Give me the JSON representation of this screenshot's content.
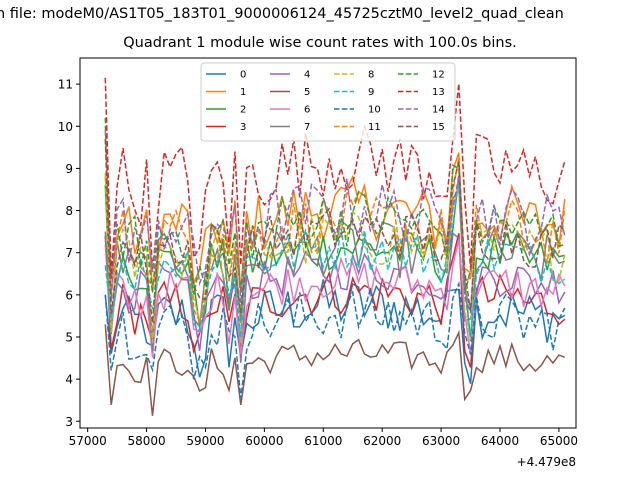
{
  "chart_data": {
    "type": "line",
    "suptitle": "n file: modeM0/AS1T05_183T01_9000006124_45725cztM0_level2_quad_clean",
    "title": "Quadrant 1 module wise count rates with 100.0s bins.",
    "xlabel": "",
    "ylabel": "",
    "x_offset_label": "+4.479e8",
    "xlim": [
      56870,
      65290
    ],
    "ylim": [
      2.84,
      11.62
    ],
    "xticks": [
      57000,
      58000,
      59000,
      60000,
      61000,
      62000,
      63000,
      64000,
      65000
    ],
    "yticks": [
      3,
      4,
      5,
      6,
      7,
      8,
      9,
      10,
      11
    ],
    "grid": false,
    "legend_position": "top-center",
    "x_start": 57300,
    "x_step": 100,
    "n_points": 79,
    "series": [
      {
        "name": "0",
        "color": "#1f77b4",
        "dash": "solid",
        "level": 5.5,
        "amp": 0.15,
        "first": 6.0
      },
      {
        "name": "1",
        "color": "#ff7f0e",
        "dash": "solid",
        "level": 7.7,
        "amp": 0.12,
        "first": 8.8
      },
      {
        "name": "2",
        "color": "#2ca02c",
        "dash": "solid",
        "level": 6.8,
        "amp": 0.1,
        "first": 8.6
      },
      {
        "name": "3",
        "color": "#d62728",
        "dash": "solid",
        "level": 5.8,
        "amp": 0.12,
        "first": 7.4
      },
      {
        "name": "4",
        "color": "#9467bd",
        "dash": "solid",
        "level": 6.3,
        "amp": 0.1,
        "first": 7.4
      },
      {
        "name": "5",
        "color": "#8c564b",
        "dash": "solid",
        "level": 4.4,
        "amp": 0.1,
        "first": 5.3
      },
      {
        "name": "6",
        "color": "#e377c2",
        "dash": "solid",
        "level": 6.1,
        "amp": 0.1,
        "first": 7.2
      },
      {
        "name": "7",
        "color": "#7f7f7f",
        "dash": "solid",
        "level": 6.8,
        "amp": 0.12,
        "first": 7.5
      },
      {
        "name": "8",
        "color": "#bcbd22",
        "dash": "dashed",
        "level": 7.0,
        "amp": 0.12,
        "first": 8.9
      },
      {
        "name": "9",
        "color": "#17becf",
        "dash": "dashed",
        "level": 6.8,
        "amp": 0.1,
        "first": 6.7
      },
      {
        "name": "10",
        "color": "#1f77b4",
        "dash": "dashed",
        "level": 5.3,
        "amp": 0.15,
        "first": 6.0
      },
      {
        "name": "11",
        "color": "#ff7f0e",
        "dash": "dashed",
        "level": 7.4,
        "amp": 0.12,
        "first": 10.0
      },
      {
        "name": "12",
        "color": "#2ca02c",
        "dash": "dashed",
        "level": 7.5,
        "amp": 0.12,
        "first": 10.2
      },
      {
        "name": "13",
        "color": "#d62728",
        "dash": "dashed",
        "level": 8.8,
        "amp": 0.12,
        "first": 11.15
      },
      {
        "name": "14",
        "color": "#9467bd",
        "dash": "dashed",
        "level": 7.7,
        "amp": 0.12,
        "first": 9.9
      },
      {
        "name": "15",
        "color": "#8c564b",
        "dash": "dashed",
        "level": 7.2,
        "amp": 0.1,
        "first": 9.7
      }
    ]
  }
}
